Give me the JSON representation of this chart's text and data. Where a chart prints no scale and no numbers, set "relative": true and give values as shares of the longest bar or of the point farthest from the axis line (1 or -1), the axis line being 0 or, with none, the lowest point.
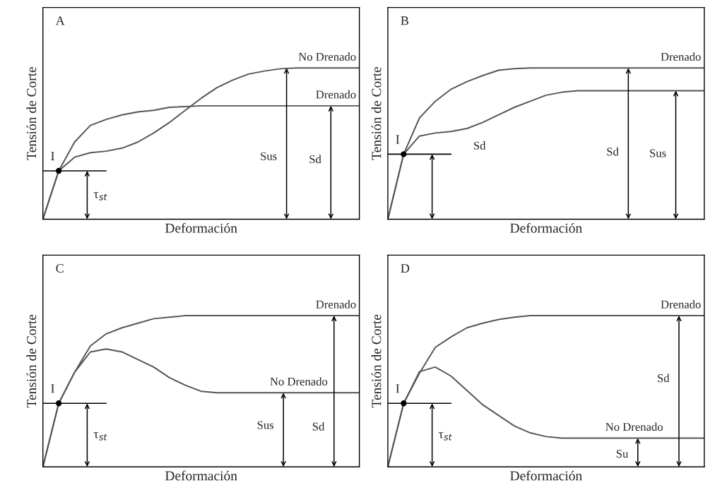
{
  "chart_data": [
    {
      "type": "line",
      "title": "A",
      "xlabel": "Deformación",
      "ylabel": "Tensión de Corte",
      "relative": true,
      "categories": [
        null,
        null,
        null,
        null,
        null,
        null,
        null,
        null,
        null,
        null,
        null,
        null,
        null,
        null,
        null,
        null,
        null,
        null,
        null,
        null,
        null
      ],
      "series": [
        {
          "name": "No Drenado",
          "color": "#555555",
          "values": [
            0,
            0.32,
            0.41,
            0.44,
            0.45,
            0.47,
            0.51,
            0.57,
            0.64,
            0.72,
            0.8,
            0.87,
            0.92,
            0.96,
            0.98,
            0.995,
            1,
            1,
            1,
            1,
            1
          ]
        },
        {
          "name": "Drenado",
          "color": "#555555",
          "values": [
            0,
            0.32,
            0.51,
            0.62,
            0.66,
            0.69,
            0.71,
            0.72,
            0.74,
            0.745,
            0.75,
            0.75,
            0.75,
            0.75,
            0.75,
            0.75,
            0.75,
            0.75,
            0.75,
            0.75,
            0.75
          ]
        }
      ],
      "annotations": [
        "I",
        "τ$_{st}$",
        "Sus",
        "Sd"
      ]
    },
    {
      "type": "line",
      "title": "B",
      "xlabel": "Deformación",
      "ylabel": "Tensión de Corte",
      "relative": true,
      "categories": [
        null,
        null,
        null,
        null,
        null,
        null,
        null,
        null,
        null,
        null,
        null,
        null,
        null,
        null,
        null,
        null,
        null,
        null,
        null,
        null,
        null
      ],
      "series": [
        {
          "name": "Drenado",
          "color": "#555555",
          "values": [
            0,
            0.43,
            0.67,
            0.78,
            0.86,
            0.91,
            0.95,
            0.985,
            0.996,
            1,
            1,
            1,
            1,
            1,
            1,
            1,
            1,
            1,
            1,
            1,
            1
          ]
        },
        {
          "color": "#555555",
          "values": [
            0,
            0.43,
            0.55,
            0.57,
            0.58,
            0.6,
            0.64,
            0.69,
            0.74,
            0.78,
            0.82,
            0.84,
            0.85,
            0.85,
            0.85,
            0.85,
            0.85,
            0.85,
            0.85,
            0.85,
            0.85
          ]
        }
      ],
      "annotations": [
        "I",
        "Sd",
        "Sd",
        "Sus"
      ]
    },
    {
      "type": "line",
      "title": "C",
      "xlabel": "Deformación",
      "ylabel": "Tensión de Corte",
      "relative": true,
      "categories": [
        null,
        null,
        null,
        null,
        null,
        null,
        null,
        null,
        null,
        null,
        null,
        null,
        null,
        null,
        null,
        null,
        null,
        null,
        null,
        null,
        null
      ],
      "series": [
        {
          "name": "Drenado",
          "color": "#555555",
          "values": [
            0,
            0.42,
            0.625,
            0.8,
            0.88,
            0.92,
            0.95,
            0.98,
            0.99,
            1,
            1,
            1,
            1,
            1,
            1,
            1,
            1,
            1,
            1,
            1,
            1
          ]
        },
        {
          "name": "No Drenado",
          "color": "#555555",
          "values": [
            0,
            0.42,
            0.625,
            0.76,
            0.78,
            0.76,
            0.71,
            0.66,
            0.59,
            0.54,
            0.5,
            0.49,
            0.49,
            0.49,
            0.49,
            0.49,
            0.49,
            0.49,
            0.49,
            0.49,
            0.49
          ]
        }
      ],
      "annotations": [
        "I",
        "τ$_{st}$",
        "Sus",
        "Sd"
      ]
    },
    {
      "type": "line",
      "title": "D",
      "xlabel": "Deformación",
      "ylabel": "Tensión de Corte",
      "relative": true,
      "categories": [
        null,
        null,
        null,
        null,
        null,
        null,
        null,
        null,
        null,
        null,
        null,
        null,
        null,
        null,
        null,
        null,
        null,
        null,
        null,
        null,
        null
      ],
      "series": [
        {
          "name": "Drenado",
          "color": "#555555",
          "values": [
            0,
            0.42,
            0.62,
            0.79,
            0.86,
            0.92,
            0.95,
            0.975,
            0.99,
            1,
            1,
            1,
            1,
            1,
            1,
            1,
            1,
            1,
            1,
            1,
            1
          ]
        },
        {
          "name": "No Drenado",
          "color": "#555555",
          "values": [
            0,
            0.42,
            0.63,
            0.66,
            0.6,
            0.505,
            0.41,
            0.34,
            0.27,
            0.225,
            0.2,
            0.19,
            0.19,
            0.19,
            0.19,
            0.19,
            0.19,
            0.19,
            0.19,
            0.19,
            0.19
          ]
        }
      ],
      "annotations": [
        "I",
        "τ$_{st}$",
        "Su",
        "Sd"
      ]
    }
  ]
}
